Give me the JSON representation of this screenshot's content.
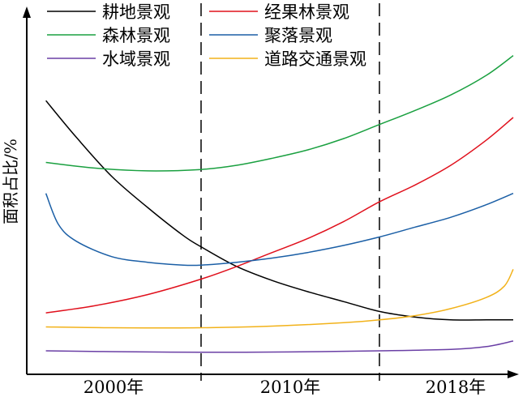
{
  "chart_data": {
    "type": "line",
    "title": "",
    "xlabel": "",
    "ylabel": "面积占比/%",
    "xticks": [
      "2000年",
      "2010年",
      "2018年"
    ],
    "period_dividers": [
      0.0,
      1.0
    ],
    "x_range": [
      -0.95,
      1.95
    ],
    "y_range": [
      0,
      100
    ],
    "grid": false,
    "legend_position": "top, two columns",
    "series": [
      {
        "name": "耕地景观",
        "color": "#000000",
        "x": [
          -0.87,
          -0.7,
          -0.5,
          -0.3,
          -0.1,
          0.0,
          0.2,
          0.4,
          0.6,
          0.8,
          1.0,
          1.2,
          1.4,
          1.6,
          1.75
        ],
        "y": [
          89,
          76,
          62,
          51,
          41,
          37,
          30,
          25,
          21,
          17.5,
          14,
          12,
          11,
          11,
          11
        ]
      },
      {
        "name": "经果林景观",
        "color": "#e0101c",
        "x": [
          -0.87,
          -0.6,
          -0.3,
          0.0,
          0.2,
          0.4,
          0.6,
          0.8,
          1.0,
          1.2,
          1.4,
          1.6,
          1.75
        ],
        "y": [
          13.5,
          16,
          20,
          25.5,
          30,
          35,
          40,
          46,
          53,
          59,
          66,
          75,
          83
        ]
      },
      {
        "name": "森林景观",
        "color": "#1aa040",
        "x": [
          -0.87,
          -0.6,
          -0.3,
          0.0,
          0.2,
          0.4,
          0.6,
          0.8,
          1.0,
          1.2,
          1.4,
          1.6,
          1.75
        ],
        "y": [
          67,
          65,
          64,
          64.5,
          66,
          68.5,
          71.5,
          75.5,
          80.5,
          85.5,
          91,
          98,
          105
        ]
      },
      {
        "name": "聚落景观",
        "color": "#1b5fa6",
        "x": [
          -0.87,
          -0.8,
          -0.7,
          -0.5,
          -0.3,
          -0.1,
          0.0,
          0.2,
          0.4,
          0.6,
          0.8,
          1.0,
          1.2,
          1.4,
          1.6,
          1.75
        ],
        "y": [
          56,
          45,
          39,
          33.5,
          31.5,
          30.5,
          30.5,
          31.5,
          33,
          35,
          37.5,
          40.5,
          44,
          47.5,
          52,
          56
        ]
      },
      {
        "name": "水域景观",
        "color": "#6a3fa5",
        "x": [
          -0.87,
          -0.5,
          0.0,
          0.5,
          1.0,
          1.4,
          1.6,
          1.75
        ],
        "y": [
          0,
          -0.3,
          -0.5,
          -0.4,
          0,
          0.5,
          1.5,
          3.5
        ]
      },
      {
        "name": "道路交通景观",
        "color": "#f2b21a",
        "x": [
          -0.87,
          -0.5,
          0.0,
          0.4,
          0.8,
          1.0,
          1.2,
          1.4,
          1.6,
          1.7,
          1.75
        ],
        "y": [
          8.5,
          8.2,
          8.2,
          8.8,
          10,
          11,
          12.5,
          15,
          19,
          23,
          29
        ]
      }
    ]
  }
}
